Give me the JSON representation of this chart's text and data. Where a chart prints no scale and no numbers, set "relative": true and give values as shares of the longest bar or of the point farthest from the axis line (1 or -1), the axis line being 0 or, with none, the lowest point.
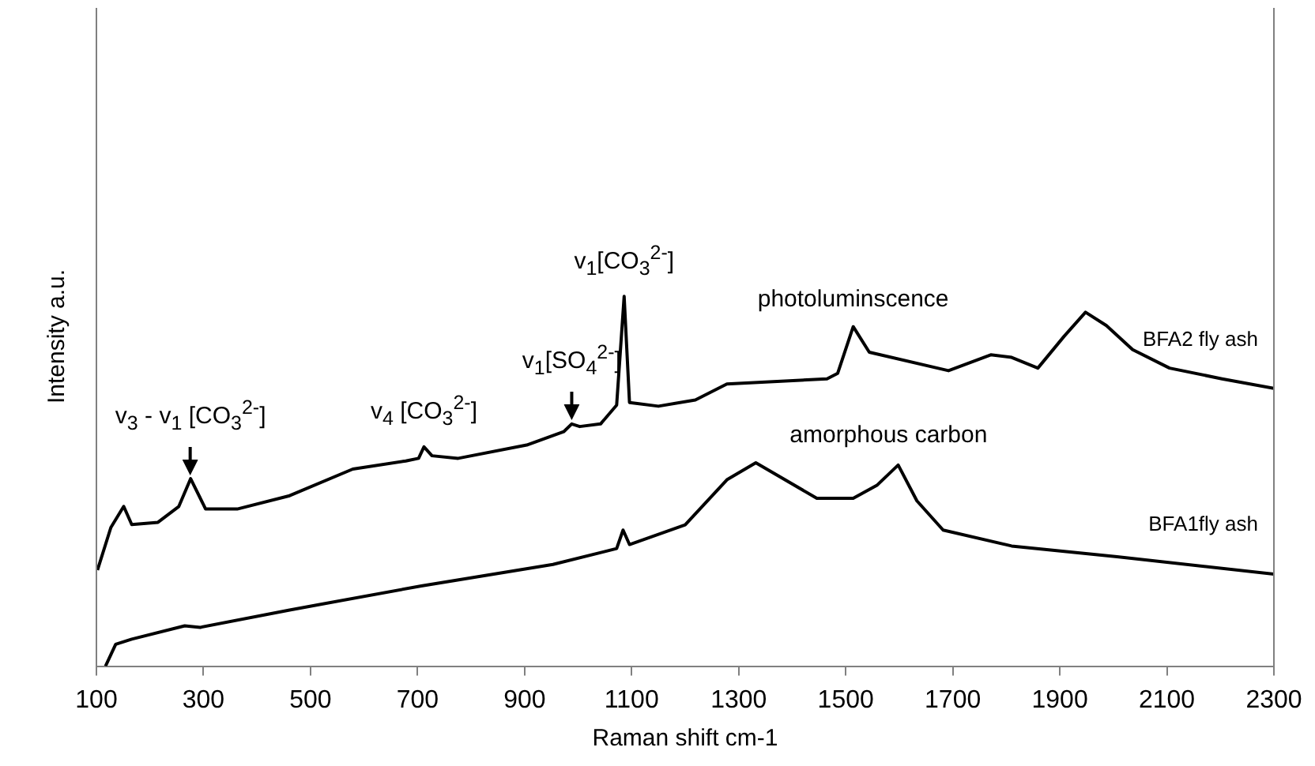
{
  "chart_data": {
    "type": "line",
    "xlabel": "Raman shift cm-1",
    "ylabel": "Intensity a.u.",
    "relative": true,
    "xlim": [
      100,
      2300
    ],
    "xticks": [
      100,
      300,
      500,
      700,
      900,
      1100,
      1300,
      1500,
      1700,
      1900,
      2100,
      2300
    ],
    "marker": "none",
    "legend": false,
    "series": [
      {
        "name": "BFA2 fly ash",
        "color": "#000000",
        "x": [
          102,
          127,
          151,
          166,
          215,
          254,
          276,
          304,
          363,
          461,
          579,
          678,
          702,
          712,
          727,
          776,
          904,
          973,
          988,
          1003,
          1042,
          1072,
          1086,
          1096,
          1150,
          1219,
          1278,
          1465,
          1485,
          1514,
          1544,
          1692,
          1771,
          1810,
          1859,
          1908,
          1948,
          1987,
          2036,
          2105,
          2203,
          2300
        ],
        "values": [
          0.26,
          0.375,
          0.432,
          0.383,
          0.389,
          0.432,
          0.507,
          0.425,
          0.425,
          0.461,
          0.533,
          0.555,
          0.562,
          0.593,
          0.569,
          0.562,
          0.598,
          0.634,
          0.655,
          0.648,
          0.655,
          0.706,
          1.0,
          0.713,
          0.703,
          0.72,
          0.763,
          0.777,
          0.792,
          0.918,
          0.849,
          0.799,
          0.842,
          0.835,
          0.806,
          0.892,
          0.957,
          0.921,
          0.856,
          0.806,
          0.777,
          0.751
        ]
      },
      {
        "name": "BFA1fly ash",
        "color": "#000000",
        "x": [
          117,
          136,
          166,
          265,
          294,
          461,
          707,
          953,
          1072,
          1084,
          1096,
          1200,
          1278,
          1332,
          1446,
          1514,
          1559,
          1598,
          1633,
          1682,
          1810,
          2007,
          2300
        ],
        "values": [
          0,
          0.059,
          0.073,
          0.109,
          0.105,
          0.152,
          0.217,
          0.275,
          0.318,
          0.368,
          0.329,
          0.382,
          0.504,
          0.55,
          0.454,
          0.454,
          0.49,
          0.544,
          0.447,
          0.368,
          0.325,
          0.296,
          0.249
        ]
      }
    ],
    "annotations": [
      {
        "text": "v$_{3}$ - v$_{1}$ [CO$_{3}$$^{2-}$]",
        "x": 276,
        "y": 0.507
      },
      {
        "text": "v$_{4}$ [CO$_{3}$$^{2-}$]",
        "x": 712,
        "y": 0.593
      },
      {
        "text": "v$_{1}$[CO$_{3}$$^{2-}$]",
        "x": 1086,
        "y": 1.0
      },
      {
        "text": "v$_{1}$[SO$_{4}$$^{2-}$]",
        "x": 988,
        "y": 0.655
      },
      {
        "text": "photoluminscence",
        "x": 1514,
        "y": 0.918
      },
      {
        "text": "amorphous carbon",
        "x": 1580,
        "y": 0.55
      }
    ]
  }
}
